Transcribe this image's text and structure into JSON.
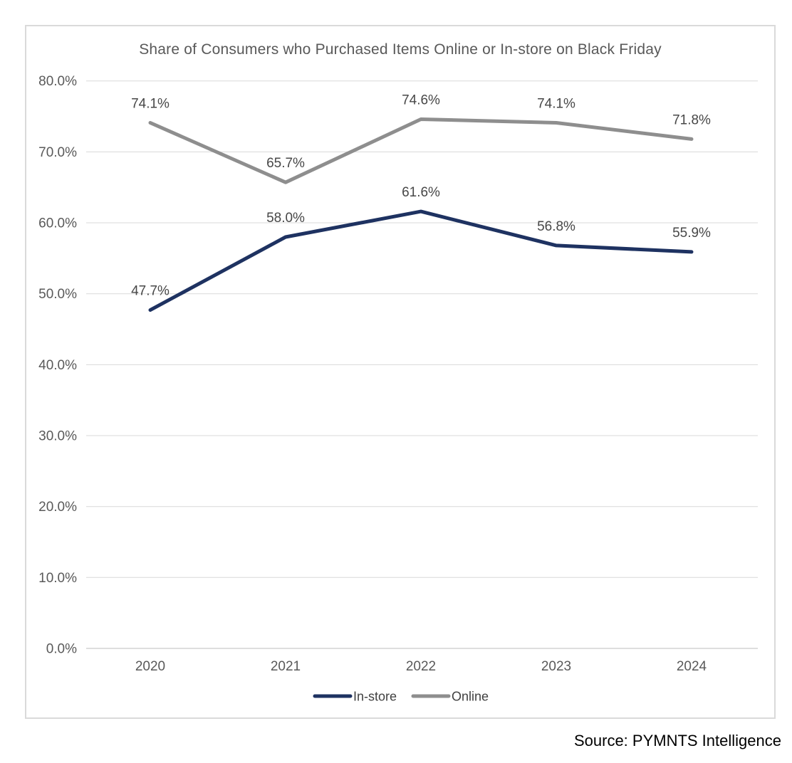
{
  "chart_data": {
    "type": "line",
    "title": "Share of Consumers who Purchased Items Online or In-store on Black Friday",
    "categories": [
      "2020",
      "2021",
      "2022",
      "2023",
      "2024"
    ],
    "series": [
      {
        "name": "In-store",
        "color": "#1e3261",
        "values": [
          47.7,
          58.0,
          61.6,
          56.8,
          55.9
        ]
      },
      {
        "name": "Online",
        "color": "#8e8e8e",
        "values": [
          74.1,
          65.7,
          74.6,
          74.1,
          71.8
        ]
      }
    ],
    "y_axis": {
      "min": 0,
      "max": 80,
      "step": 10,
      "tick_labels": [
        "0.0%",
        "10.0%",
        "20.0%",
        "30.0%",
        "40.0%",
        "50.0%",
        "60.0%",
        "70.0%",
        "80.0%"
      ]
    },
    "data_label_format": "percent_one_decimal",
    "grid": true,
    "legend_position": "bottom"
  },
  "source_note": "Source: PYMNTS Intelligence",
  "colors": {
    "background": "#ffffff",
    "card_border": "#dadada",
    "grid": "#d9d9d9",
    "axis_text": "#595959",
    "data_label_text": "#474747",
    "title_text": "#595959",
    "legend_text": "#404040",
    "source_text": "#000000",
    "in_store_line": "#1e3261",
    "online_line": "#8e8e8e"
  }
}
